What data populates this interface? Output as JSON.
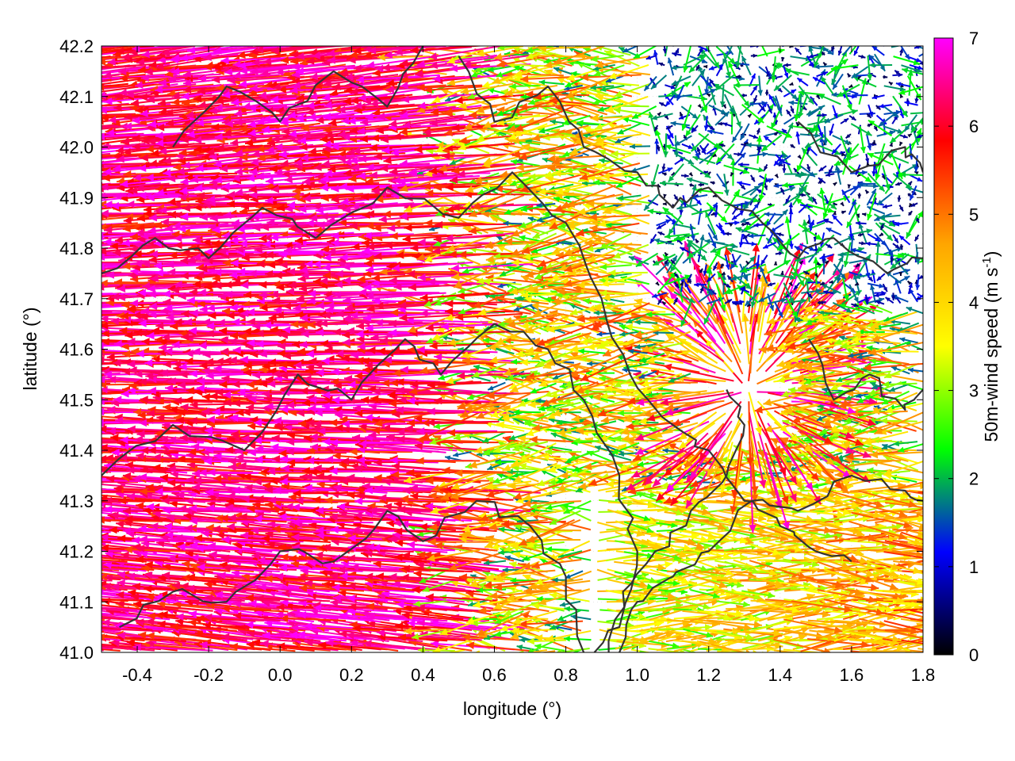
{
  "chart_data": {
    "type": "vector-field",
    "title": "",
    "xlabel": "longitude (°)",
    "ylabel": "latitude (°)",
    "xlim": [
      -0.5,
      1.8
    ],
    "ylim": [
      41.0,
      42.2
    ],
    "xticks": [
      -0.4,
      -0.2,
      0.0,
      0.2,
      0.4,
      0.6,
      0.8,
      1.0,
      1.2,
      1.4,
      1.6,
      1.8
    ],
    "xtick_labels": [
      "-0.4",
      "-0.2",
      "0.0",
      "0.2",
      "0.4",
      "0.6",
      "0.8",
      "1.0",
      "1.2",
      "1.4",
      "1.6",
      "1.8"
    ],
    "yticks": [
      41.0,
      41.1,
      41.2,
      41.3,
      41.4,
      41.5,
      41.6,
      41.7,
      41.8,
      41.9,
      42.0,
      42.1,
      42.2
    ],
    "ytick_labels": [
      "41.0",
      "41.1",
      "41.2",
      "41.3",
      "41.4",
      "41.5",
      "41.6",
      "41.7",
      "41.8",
      "41.9",
      "42.0",
      "42.1",
      "42.2"
    ],
    "grid": true,
    "colorbar": {
      "label": "50m-wind speed (m s",
      "label_sup": "-1",
      "label_end": ")",
      "range": [
        0,
        7
      ],
      "ticks": [
        0,
        1,
        2,
        3,
        4,
        5,
        6,
        7
      ],
      "tick_labels": [
        "0",
        "1",
        "2",
        "3",
        "4",
        "5",
        "6",
        "7"
      ],
      "colors": [
        "#000000",
        "#0000ff",
        "#00ff00",
        "#ffff00",
        "#ffa500",
        "#ff0000",
        "#ff00ff"
      ]
    },
    "regimes": [
      {
        "region": "west",
        "lon": [
          -0.5,
          0.6
        ],
        "lat": [
          41.0,
          42.2
        ],
        "speed_range": [
          5,
          7
        ],
        "direction": "from east (westward flow)"
      },
      {
        "region": "northeast",
        "lon": [
          1.1,
          1.8
        ],
        "lat": [
          41.7,
          42.2
        ],
        "speed_range": [
          0,
          2
        ],
        "direction": "variable"
      },
      {
        "region": "southeast",
        "lon": [
          0.9,
          1.8
        ],
        "lat": [
          41.0,
          41.35
        ],
        "speed_range": [
          2,
          5
        ],
        "direction": "from west (eastward flow)"
      },
      {
        "region": "convergence",
        "lon": [
          1.2,
          1.45
        ],
        "lat": [
          41.4,
          41.7
        ],
        "speed_range": [
          3,
          7
        ],
        "direction": "radial"
      }
    ],
    "contours": [
      {
        "points": [
          [
            -0.45,
            41.05
          ],
          [
            -0.3,
            41.12
          ],
          [
            -0.15,
            41.1
          ],
          [
            0.0,
            41.2
          ],
          [
            0.15,
            41.18
          ],
          [
            0.3,
            41.28
          ],
          [
            0.4,
            41.22
          ],
          [
            0.55,
            41.3
          ],
          [
            0.7,
            41.25
          ],
          [
            0.8,
            41.15
          ],
          [
            0.85,
            41.0
          ]
        ]
      },
      {
        "points": [
          [
            -0.5,
            41.35
          ],
          [
            -0.3,
            41.45
          ],
          [
            -0.1,
            41.4
          ],
          [
            0.05,
            41.55
          ],
          [
            0.2,
            41.5
          ],
          [
            0.35,
            41.62
          ],
          [
            0.45,
            41.55
          ],
          [
            0.6,
            41.65
          ],
          [
            0.75,
            41.6
          ],
          [
            0.85,
            41.5
          ],
          [
            0.95,
            41.35
          ],
          [
            1.0,
            41.2
          ],
          [
            0.95,
            41.05
          ],
          [
            0.88,
            41.0
          ]
        ]
      },
      {
        "points": [
          [
            -0.5,
            41.75
          ],
          [
            -0.35,
            41.82
          ],
          [
            -0.2,
            41.78
          ],
          [
            -0.05,
            41.88
          ],
          [
            0.1,
            41.82
          ],
          [
            0.3,
            41.92
          ],
          [
            0.5,
            41.86
          ],
          [
            0.65,
            41.95
          ],
          [
            0.8,
            41.85
          ],
          [
            0.9,
            41.7
          ],
          [
            0.98,
            41.55
          ],
          [
            1.1,
            41.45
          ],
          [
            1.2,
            41.4
          ],
          [
            1.3,
            41.3
          ],
          [
            1.4,
            41.25
          ],
          [
            1.5,
            41.2
          ],
          [
            1.6,
            41.18
          ]
        ]
      },
      {
        "points": [
          [
            0.5,
            42.18
          ],
          [
            0.6,
            42.05
          ],
          [
            0.75,
            42.12
          ],
          [
            0.85,
            42.0
          ],
          [
            1.0,
            41.95
          ],
          [
            1.1,
            41.88
          ],
          [
            1.2,
            41.92
          ],
          [
            1.35,
            41.85
          ],
          [
            1.45,
            41.78
          ],
          [
            1.55,
            41.82
          ],
          [
            1.7,
            41.75
          ],
          [
            1.8,
            41.78
          ]
        ]
      },
      {
        "points": [
          [
            1.45,
            42.05
          ],
          [
            1.6,
            41.95
          ],
          [
            1.75,
            42.0
          ],
          [
            1.8,
            41.95
          ]
        ]
      },
      {
        "points": [
          [
            0.95,
            41.0
          ],
          [
            1.0,
            41.1
          ],
          [
            1.1,
            41.15
          ],
          [
            1.2,
            41.2
          ],
          [
            1.32,
            41.3
          ],
          [
            1.45,
            41.28
          ],
          [
            1.6,
            41.35
          ],
          [
            1.75,
            41.32
          ],
          [
            1.8,
            41.3
          ]
        ]
      },
      {
        "points": [
          [
            1.48,
            41.62
          ],
          [
            1.55,
            41.5
          ],
          [
            1.65,
            41.55
          ],
          [
            1.75,
            41.48
          ],
          [
            1.8,
            41.52
          ]
        ]
      },
      {
        "points": [
          [
            -0.3,
            42.0
          ],
          [
            -0.15,
            42.12
          ],
          [
            0.0,
            42.05
          ],
          [
            0.15,
            42.15
          ],
          [
            0.3,
            42.08
          ],
          [
            0.4,
            42.2
          ]
        ]
      },
      {
        "points": [
          [
            0.92,
            41.0
          ],
          [
            0.96,
            41.12
          ],
          [
            1.05,
            41.2
          ],
          [
            1.15,
            41.28
          ],
          [
            1.25,
            41.35
          ],
          [
            1.3,
            41.45
          ],
          [
            1.25,
            41.52
          ]
        ]
      }
    ]
  }
}
